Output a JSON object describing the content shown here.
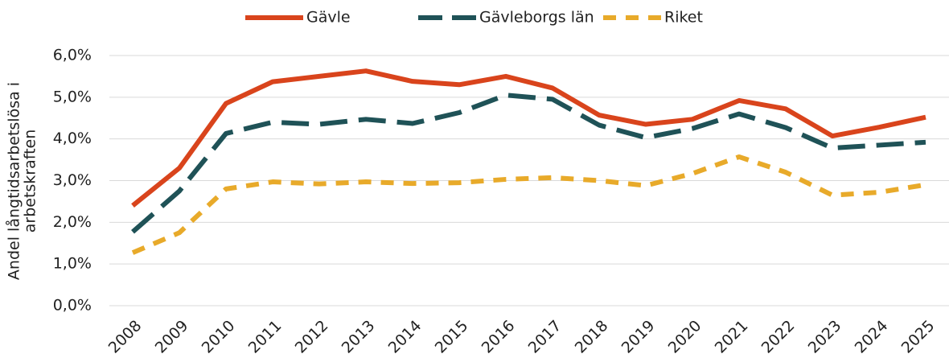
{
  "chart_data": {
    "type": "line",
    "y_label": [
      "Andel långtidsarbetslösa i",
      "arbetskraften"
    ],
    "categories": [
      "2008",
      "2009",
      "2010",
      "2011",
      "2012",
      "2013",
      "2014",
      "2015",
      "2016",
      "2017",
      "2018",
      "2019",
      "2020",
      "2021",
      "2022",
      "2023",
      "2024",
      "2025"
    ],
    "series": [
      {
        "name": "Gävle",
        "color": "#d9441c",
        "dash": "solid",
        "values": [
          2.4,
          3.3,
          4.85,
          5.37,
          5.5,
          5.63,
          5.38,
          5.3,
          5.5,
          5.22,
          4.57,
          4.35,
          4.47,
          4.92,
          4.72,
          4.07,
          4.28,
          4.52
        ]
      },
      {
        "name": "Gävleborgs län",
        "color": "#1f5257",
        "dash": "long",
        "values": [
          1.77,
          2.75,
          4.13,
          4.4,
          4.35,
          4.47,
          4.37,
          4.63,
          5.05,
          4.95,
          4.33,
          4.03,
          4.25,
          4.6,
          4.27,
          3.78,
          3.85,
          3.92
        ]
      },
      {
        "name": "Riket",
        "color": "#e8aa2a",
        "dash": "short",
        "values": [
          1.27,
          1.75,
          2.8,
          2.97,
          2.92,
          2.97,
          2.93,
          2.95,
          3.03,
          3.07,
          3.0,
          2.88,
          3.17,
          3.57,
          3.2,
          2.65,
          2.72,
          2.9
        ]
      }
    ],
    "ylim": [
      0,
      6
    ],
    "yticks": [
      {
        "value": 0,
        "label": "0,0%"
      },
      {
        "value": 1,
        "label": "1,0%"
      },
      {
        "value": 2,
        "label": "2,0%"
      },
      {
        "value": 3,
        "label": "3,0%"
      },
      {
        "value": 4,
        "label": "4,0%"
      },
      {
        "value": 5,
        "label": "5,0%"
      },
      {
        "value": 6,
        "label": "6,0%"
      }
    ],
    "grid": true,
    "legend": "top"
  }
}
